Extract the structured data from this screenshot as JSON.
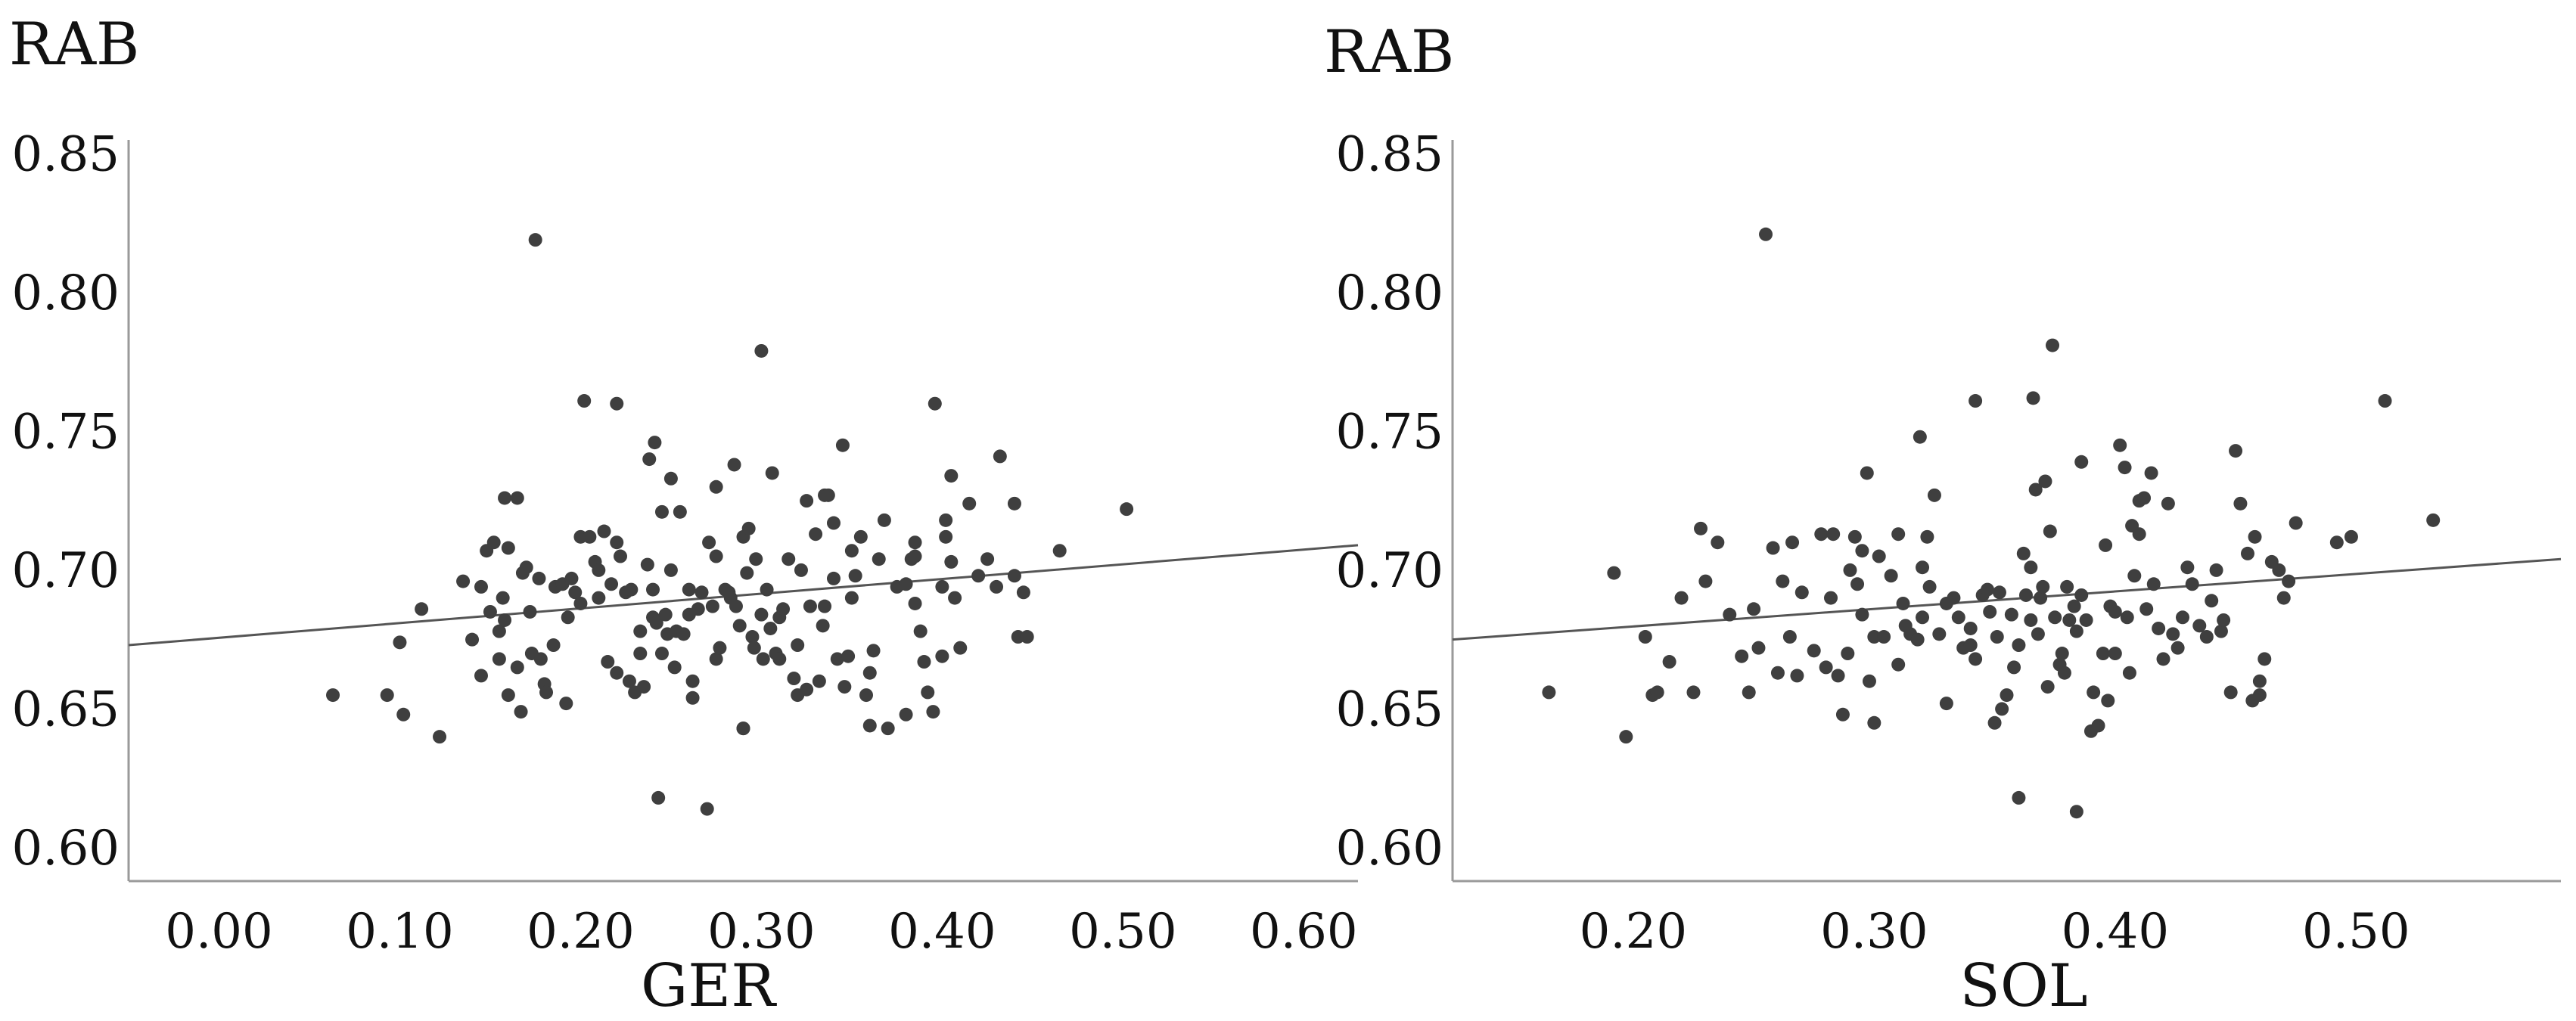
{
  "colors": {
    "point": "#3f3f3f",
    "axis": "#9a9a9a",
    "fit_line": "#555555",
    "text": "#111111",
    "background": "#ffffff"
  },
  "chart_data": [
    {
      "type": "scatter",
      "title": "",
      "xlabel": "GER",
      "ylabel": "RAB",
      "xlim": [
        -0.05,
        0.63
      ],
      "ylim": [
        0.588,
        0.855
      ],
      "xticks": [
        "0.00",
        "0.10",
        "0.20",
        "0.30",
        "0.40",
        "0.50",
        "0.60"
      ],
      "yticks": [
        "0.85",
        "0.80",
        "0.75",
        "0.70",
        "0.65",
        "0.60"
      ],
      "fit_line": {
        "x": [
          -0.05,
          0.63
        ],
        "y": [
          0.673,
          0.709
        ]
      },
      "grid": false,
      "legend": "none",
      "points": [
        [
          0.063,
          0.655
        ],
        [
          0.093,
          0.655
        ],
        [
          0.1,
          0.674
        ],
        [
          0.102,
          0.648
        ],
        [
          0.112,
          0.686
        ],
        [
          0.122,
          0.64
        ],
        [
          0.135,
          0.696
        ],
        [
          0.14,
          0.675
        ],
        [
          0.145,
          0.662
        ],
        [
          0.145,
          0.694
        ],
        [
          0.148,
          0.707
        ],
        [
          0.15,
          0.685
        ],
        [
          0.152,
          0.71
        ],
        [
          0.155,
          0.668
        ],
        [
          0.155,
          0.678
        ],
        [
          0.157,
          0.69
        ],
        [
          0.158,
          0.682
        ],
        [
          0.158,
          0.726
        ],
        [
          0.16,
          0.655
        ],
        [
          0.16,
          0.708
        ],
        [
          0.165,
          0.726
        ],
        [
          0.165,
          0.665
        ],
        [
          0.167,
          0.649
        ],
        [
          0.168,
          0.699
        ],
        [
          0.17,
          0.701
        ],
        [
          0.172,
          0.685
        ],
        [
          0.173,
          0.67
        ],
        [
          0.175,
          0.819
        ],
        [
          0.177,
          0.697
        ],
        [
          0.178,
          0.668
        ],
        [
          0.18,
          0.659
        ],
        [
          0.181,
          0.656
        ],
        [
          0.185,
          0.673
        ],
        [
          0.186,
          0.694
        ],
        [
          0.19,
          0.695
        ],
        [
          0.192,
          0.652
        ],
        [
          0.193,
          0.683
        ],
        [
          0.195,
          0.697
        ],
        [
          0.197,
          0.692
        ],
        [
          0.2,
          0.688
        ],
        [
          0.2,
          0.712
        ],
        [
          0.202,
          0.761
        ],
        [
          0.205,
          0.712
        ],
        [
          0.208,
          0.703
        ],
        [
          0.21,
          0.69
        ],
        [
          0.21,
          0.7
        ],
        [
          0.213,
          0.714
        ],
        [
          0.215,
          0.667
        ],
        [
          0.217,
          0.695
        ],
        [
          0.22,
          0.71
        ],
        [
          0.22,
          0.663
        ],
        [
          0.22,
          0.76
        ],
        [
          0.222,
          0.705
        ],
        [
          0.225,
          0.692
        ],
        [
          0.227,
          0.66
        ],
        [
          0.228,
          0.693
        ],
        [
          0.23,
          0.656
        ],
        [
          0.233,
          0.678
        ],
        [
          0.233,
          0.67
        ],
        [
          0.235,
          0.658
        ],
        [
          0.237,
          0.702
        ],
        [
          0.238,
          0.74
        ],
        [
          0.24,
          0.693
        ],
        [
          0.24,
          0.683
        ],
        [
          0.241,
          0.746
        ],
        [
          0.242,
          0.681
        ],
        [
          0.243,
          0.618
        ],
        [
          0.245,
          0.67
        ],
        [
          0.245,
          0.721
        ],
        [
          0.247,
          0.684
        ],
        [
          0.248,
          0.677
        ],
        [
          0.25,
          0.733
        ],
        [
          0.25,
          0.7
        ],
        [
          0.252,
          0.665
        ],
        [
          0.253,
          0.678
        ],
        [
          0.255,
          0.721
        ],
        [
          0.257,
          0.677
        ],
        [
          0.26,
          0.684
        ],
        [
          0.26,
          0.693
        ],
        [
          0.262,
          0.66
        ],
        [
          0.262,
          0.654
        ],
        [
          0.265,
          0.686
        ],
        [
          0.267,
          0.692
        ],
        [
          0.27,
          0.614
        ],
        [
          0.271,
          0.71
        ],
        [
          0.273,
          0.687
        ],
        [
          0.275,
          0.705
        ],
        [
          0.275,
          0.668
        ],
        [
          0.275,
          0.73
        ],
        [
          0.277,
          0.672
        ],
        [
          0.28,
          0.693
        ],
        [
          0.282,
          0.692
        ],
        [
          0.283,
          0.69
        ],
        [
          0.285,
          0.738
        ],
        [
          0.286,
          0.687
        ],
        [
          0.288,
          0.68
        ],
        [
          0.29,
          0.643
        ],
        [
          0.29,
          0.643
        ],
        [
          0.29,
          0.712
        ],
        [
          0.292,
          0.699
        ],
        [
          0.293,
          0.715
        ],
        [
          0.295,
          0.676
        ],
        [
          0.296,
          0.672
        ],
        [
          0.297,
          0.704
        ],
        [
          0.3,
          0.779
        ],
        [
          0.3,
          0.684
        ],
        [
          0.301,
          0.668
        ],
        [
          0.303,
          0.693
        ],
        [
          0.305,
          0.679
        ],
        [
          0.306,
          0.735
        ],
        [
          0.308,
          0.67
        ],
        [
          0.31,
          0.683
        ],
        [
          0.31,
          0.668
        ],
        [
          0.312,
          0.686
        ],
        [
          0.315,
          0.704
        ],
        [
          0.318,
          0.661
        ],
        [
          0.32,
          0.673
        ],
        [
          0.32,
          0.655
        ],
        [
          0.322,
          0.7
        ],
        [
          0.325,
          0.657
        ],
        [
          0.325,
          0.725
        ],
        [
          0.327,
          0.687
        ],
        [
          0.33,
          0.713
        ],
        [
          0.332,
          0.66
        ],
        [
          0.334,
          0.68
        ],
        [
          0.335,
          0.727
        ],
        [
          0.335,
          0.687
        ],
        [
          0.337,
          0.727
        ],
        [
          0.34,
          0.717
        ],
        [
          0.34,
          0.697
        ],
        [
          0.342,
          0.668
        ],
        [
          0.345,
          0.745
        ],
        [
          0.346,
          0.658
        ],
        [
          0.348,
          0.669
        ],
        [
          0.35,
          0.707
        ],
        [
          0.35,
          0.69
        ],
        [
          0.352,
          0.698
        ],
        [
          0.355,
          0.712
        ],
        [
          0.358,
          0.655
        ],
        [
          0.36,
          0.644
        ],
        [
          0.36,
          0.663
        ],
        [
          0.362,
          0.671
        ],
        [
          0.365,
          0.704
        ],
        [
          0.368,
          0.718
        ],
        [
          0.37,
          0.643
        ],
        [
          0.375,
          0.694
        ],
        [
          0.38,
          0.695
        ],
        [
          0.38,
          0.648
        ],
        [
          0.383,
          0.704
        ],
        [
          0.385,
          0.71
        ],
        [
          0.385,
          0.705
        ],
        [
          0.385,
          0.688
        ],
        [
          0.388,
          0.678
        ],
        [
          0.39,
          0.667
        ],
        [
          0.392,
          0.656
        ],
        [
          0.395,
          0.649
        ],
        [
          0.396,
          0.76
        ],
        [
          0.4,
          0.669
        ],
        [
          0.4,
          0.694
        ],
        [
          0.402,
          0.718
        ],
        [
          0.402,
          0.712
        ],
        [
          0.405,
          0.734
        ],
        [
          0.405,
          0.703
        ],
        [
          0.407,
          0.69
        ],
        [
          0.41,
          0.672
        ],
        [
          0.415,
          0.724
        ],
        [
          0.42,
          0.698
        ],
        [
          0.425,
          0.704
        ],
        [
          0.43,
          0.694
        ],
        [
          0.432,
          0.741
        ],
        [
          0.44,
          0.724
        ],
        [
          0.44,
          0.698
        ],
        [
          0.442,
          0.676
        ],
        [
          0.445,
          0.692
        ],
        [
          0.447,
          0.676
        ],
        [
          0.465,
          0.707
        ],
        [
          0.502,
          0.722
        ]
      ]
    },
    {
      "type": "scatter",
      "title": "",
      "xlabel": "SOL",
      "ylabel": "RAB",
      "xlim": [
        0.125,
        0.585
      ],
      "ylim": [
        0.588,
        0.855
      ],
      "xticks": [
        "0.20",
        "0.30",
        "0.40",
        "0.50"
      ],
      "yticks": [
        "0.85",
        "0.80",
        "0.75",
        "0.70",
        "0.65",
        "0.60"
      ],
      "fit_line": {
        "x": [
          0.125,
          0.585
        ],
        "y": [
          0.675,
          0.704
        ]
      },
      "grid": false,
      "legend": "none",
      "points": [
        [
          0.165,
          0.656
        ],
        [
          0.192,
          0.699
        ],
        [
          0.197,
          0.64
        ],
        [
          0.205,
          0.676
        ],
        [
          0.208,
          0.655
        ],
        [
          0.21,
          0.656
        ],
        [
          0.215,
          0.667
        ],
        [
          0.22,
          0.69
        ],
        [
          0.225,
          0.656
        ],
        [
          0.228,
          0.715
        ],
        [
          0.23,
          0.696
        ],
        [
          0.235,
          0.71
        ],
        [
          0.24,
          0.684
        ],
        [
          0.245,
          0.669
        ],
        [
          0.248,
          0.656
        ],
        [
          0.25,
          0.686
        ],
        [
          0.252,
          0.672
        ],
        [
          0.255,
          0.821
        ],
        [
          0.258,
          0.708
        ],
        [
          0.26,
          0.663
        ],
        [
          0.262,
          0.696
        ],
        [
          0.265,
          0.676
        ],
        [
          0.266,
          0.71
        ],
        [
          0.268,
          0.662
        ],
        [
          0.27,
          0.692
        ],
        [
          0.275,
          0.671
        ],
        [
          0.278,
          0.713
        ],
        [
          0.28,
          0.665
        ],
        [
          0.282,
          0.69
        ],
        [
          0.283,
          0.713
        ],
        [
          0.285,
          0.662
        ],
        [
          0.287,
          0.648
        ],
        [
          0.289,
          0.67
        ],
        [
          0.29,
          0.7
        ],
        [
          0.292,
          0.712
        ],
        [
          0.293,
          0.695
        ],
        [
          0.295,
          0.707
        ],
        [
          0.295,
          0.684
        ],
        [
          0.297,
          0.735
        ],
        [
          0.298,
          0.66
        ],
        [
          0.3,
          0.676
        ],
        [
          0.3,
          0.645
        ],
        [
          0.302,
          0.705
        ],
        [
          0.304,
          0.676
        ],
        [
          0.307,
          0.698
        ],
        [
          0.31,
          0.666
        ],
        [
          0.31,
          0.713
        ],
        [
          0.312,
          0.688
        ],
        [
          0.313,
          0.68
        ],
        [
          0.315,
          0.677
        ],
        [
          0.318,
          0.675
        ],
        [
          0.319,
          0.748
        ],
        [
          0.32,
          0.701
        ],
        [
          0.32,
          0.683
        ],
        [
          0.322,
          0.712
        ],
        [
          0.323,
          0.694
        ],
        [
          0.325,
          0.727
        ],
        [
          0.327,
          0.677
        ],
        [
          0.33,
          0.688
        ],
        [
          0.33,
          0.652
        ],
        [
          0.333,
          0.69
        ],
        [
          0.335,
          0.683
        ],
        [
          0.337,
          0.672
        ],
        [
          0.34,
          0.679
        ],
        [
          0.34,
          0.673
        ],
        [
          0.342,
          0.668
        ],
        [
          0.342,
          0.761
        ],
        [
          0.345,
          0.691
        ],
        [
          0.347,
          0.693
        ],
        [
          0.348,
          0.685
        ],
        [
          0.35,
          0.645
        ],
        [
          0.351,
          0.676
        ],
        [
          0.352,
          0.692
        ],
        [
          0.353,
          0.65
        ],
        [
          0.355,
          0.655
        ],
        [
          0.357,
          0.684
        ],
        [
          0.358,
          0.665
        ],
        [
          0.36,
          0.618
        ],
        [
          0.36,
          0.673
        ],
        [
          0.362,
          0.706
        ],
        [
          0.363,
          0.691
        ],
        [
          0.365,
          0.701
        ],
        [
          0.365,
          0.682
        ],
        [
          0.366,
          0.762
        ],
        [
          0.367,
          0.729
        ],
        [
          0.368,
          0.677
        ],
        [
          0.369,
          0.69
        ],
        [
          0.37,
          0.694
        ],
        [
          0.371,
          0.732
        ],
        [
          0.372,
          0.658
        ],
        [
          0.373,
          0.714
        ],
        [
          0.374,
          0.781
        ],
        [
          0.375,
          0.683
        ],
        [
          0.377,
          0.666
        ],
        [
          0.378,
          0.67
        ],
        [
          0.379,
          0.663
        ],
        [
          0.38,
          0.694
        ],
        [
          0.381,
          0.682
        ],
        [
          0.383,
          0.687
        ],
        [
          0.384,
          0.678
        ],
        [
          0.384,
          0.613
        ],
        [
          0.386,
          0.691
        ],
        [
          0.386,
          0.739
        ],
        [
          0.388,
          0.682
        ],
        [
          0.39,
          0.642
        ],
        [
          0.391,
          0.656
        ],
        [
          0.393,
          0.644
        ],
        [
          0.395,
          0.67
        ],
        [
          0.396,
          0.709
        ],
        [
          0.397,
          0.653
        ],
        [
          0.398,
          0.687
        ],
        [
          0.4,
          0.685
        ],
        [
          0.4,
          0.67
        ],
        [
          0.402,
          0.745
        ],
        [
          0.404,
          0.737
        ],
        [
          0.405,
          0.683
        ],
        [
          0.406,
          0.663
        ],
        [
          0.407,
          0.716
        ],
        [
          0.408,
          0.698
        ],
        [
          0.41,
          0.725
        ],
        [
          0.41,
          0.713
        ],
        [
          0.412,
          0.726
        ],
        [
          0.413,
          0.686
        ],
        [
          0.415,
          0.735
        ],
        [
          0.416,
          0.695
        ],
        [
          0.418,
          0.679
        ],
        [
          0.42,
          0.668
        ],
        [
          0.422,
          0.724
        ],
        [
          0.424,
          0.677
        ],
        [
          0.426,
          0.672
        ],
        [
          0.428,
          0.683
        ],
        [
          0.43,
          0.701
        ],
        [
          0.432,
          0.695
        ],
        [
          0.435,
          0.68
        ],
        [
          0.438,
          0.676
        ],
        [
          0.44,
          0.689
        ],
        [
          0.442,
          0.7
        ],
        [
          0.444,
          0.678
        ],
        [
          0.445,
          0.682
        ],
        [
          0.448,
          0.656
        ],
        [
          0.45,
          0.743
        ],
        [
          0.452,
          0.724
        ],
        [
          0.455,
          0.706
        ],
        [
          0.457,
          0.653
        ],
        [
          0.458,
          0.712
        ],
        [
          0.46,
          0.66
        ],
        [
          0.46,
          0.655
        ],
        [
          0.462,
          0.668
        ],
        [
          0.465,
          0.703
        ],
        [
          0.468,
          0.7
        ],
        [
          0.47,
          0.69
        ],
        [
          0.472,
          0.696
        ],
        [
          0.475,
          0.717
        ],
        [
          0.492,
          0.71
        ],
        [
          0.498,
          0.712
        ],
        [
          0.512,
          0.761
        ],
        [
          0.532,
          0.718
        ]
      ]
    }
  ]
}
